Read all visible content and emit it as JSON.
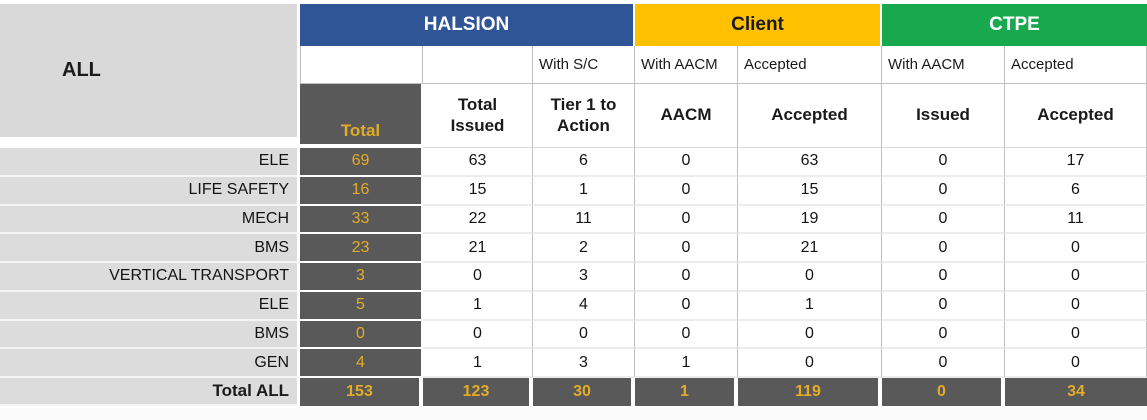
{
  "table": {
    "corner_label": "ALL",
    "groups": [
      {
        "label": "HALSION",
        "color": "#2F5597"
      },
      {
        "label": "Client",
        "color": "#FFC000"
      },
      {
        "label": "CTPE",
        "color": "#18A94E"
      }
    ],
    "subheaders": [
      "",
      "",
      "With S/C",
      "With AACM",
      "Accepted",
      "With AACM",
      "Accepted"
    ],
    "columns": [
      "Total",
      "Total\nIssued",
      "Tier 1 to\nAction",
      "AACM",
      "Accepted",
      "Issued",
      "Accepted"
    ],
    "rows": [
      {
        "label": "ELE",
        "values": [
          69,
          63,
          6,
          0,
          63,
          0,
          17
        ]
      },
      {
        "label": "LIFE SAFETY",
        "values": [
          16,
          15,
          1,
          0,
          15,
          0,
          6
        ]
      },
      {
        "label": "MECH",
        "values": [
          33,
          22,
          11,
          0,
          19,
          0,
          11
        ]
      },
      {
        "label": "BMS",
        "values": [
          23,
          21,
          2,
          0,
          21,
          0,
          0
        ]
      },
      {
        "label": "VERTICAL TRANSPORT",
        "values": [
          3,
          0,
          3,
          0,
          0,
          0,
          0
        ]
      },
      {
        "label": "ELE",
        "values": [
          5,
          1,
          4,
          0,
          1,
          0,
          0
        ]
      },
      {
        "label": "BMS",
        "values": [
          0,
          0,
          0,
          0,
          0,
          0,
          0
        ]
      },
      {
        "label": "GEN",
        "values": [
          4,
          1,
          3,
          1,
          0,
          0,
          0
        ]
      }
    ],
    "total_row": {
      "label": "Total ALL",
      "values": [
        153,
        123,
        30,
        1,
        119,
        0,
        34
      ]
    },
    "colors": {
      "halsion_blue": "#2F5597",
      "client_gold": "#FFC000",
      "ctpe_green": "#18A94E",
      "dark_cell_gray": "#595959",
      "gold_number_text": "#E3AC28",
      "row_label_gray": "#DCDCDC"
    }
  }
}
